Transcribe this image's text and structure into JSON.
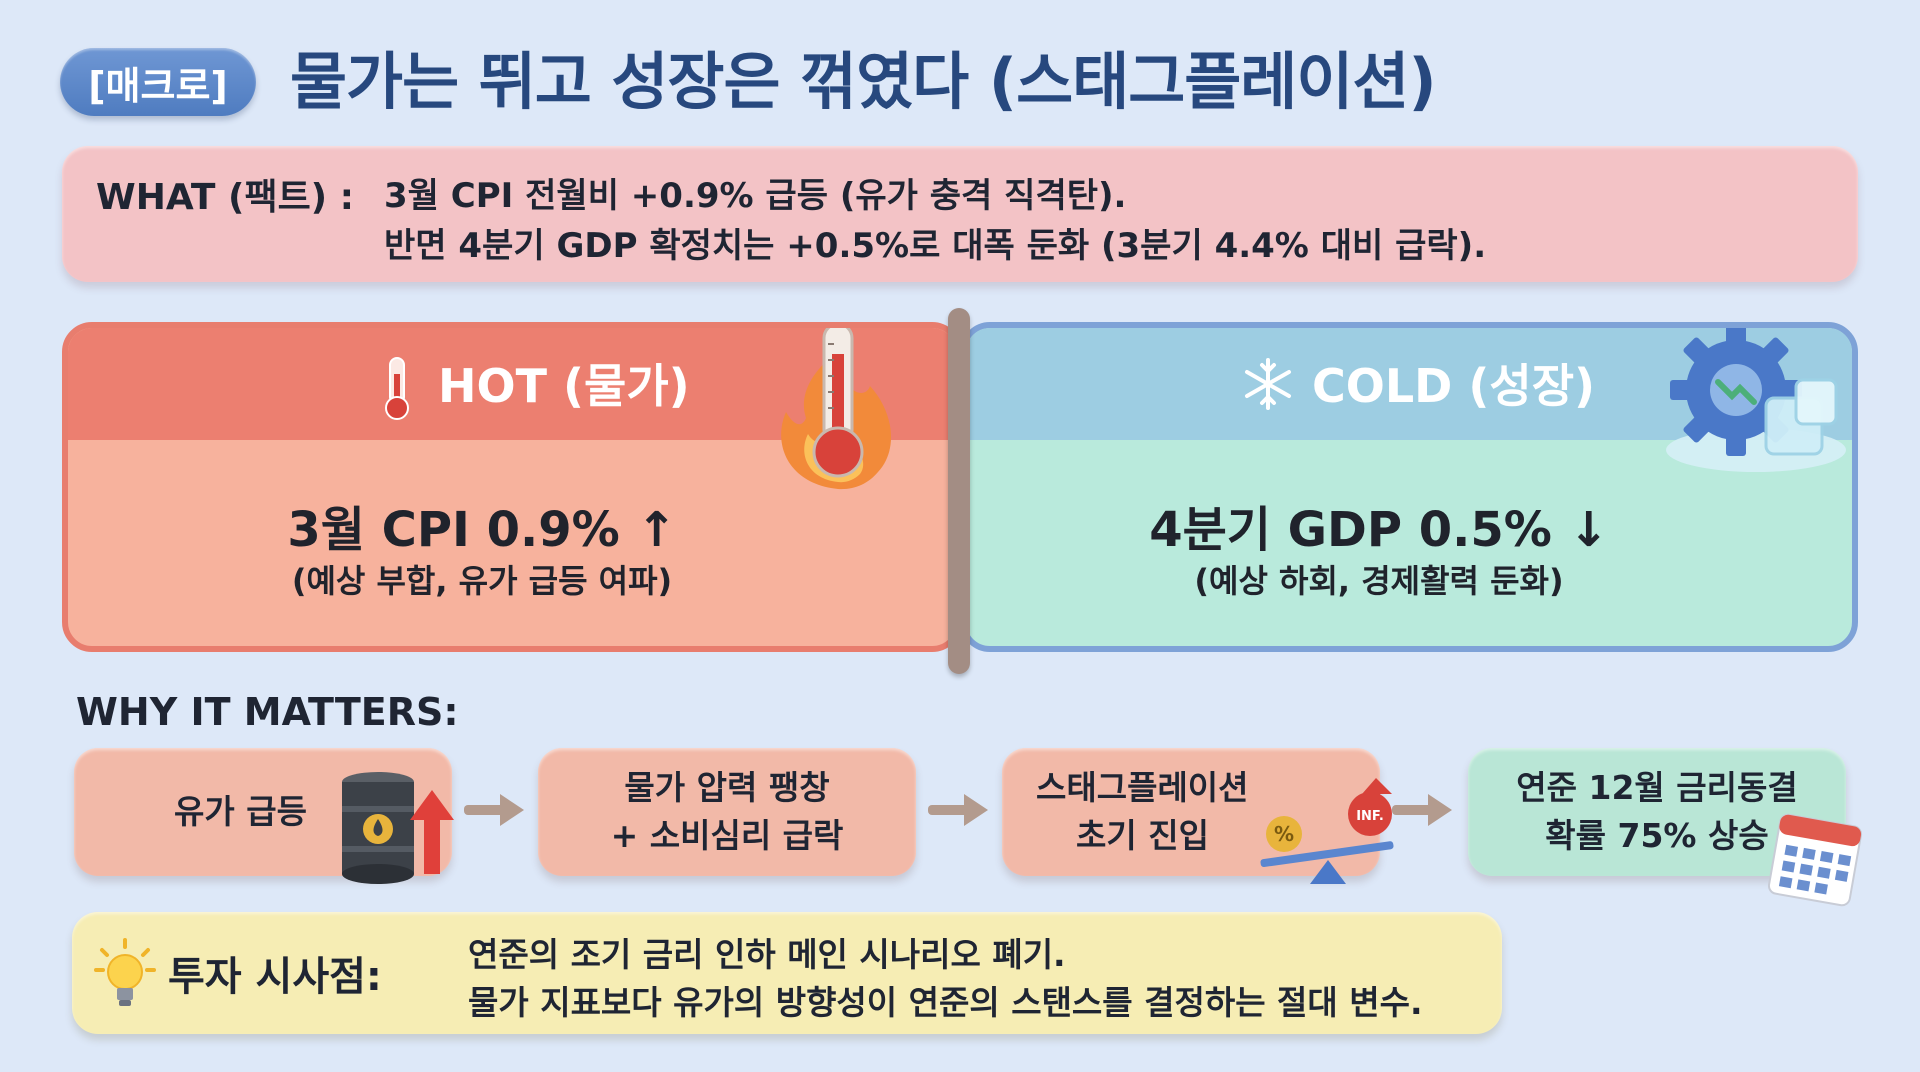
{
  "header": {
    "tag": "[매크로]",
    "title": "물가는 뛰고 성장은 꺾였다 (스태그플레이션)"
  },
  "what": {
    "label": "WHAT (팩트) :",
    "line1": "3월 CPI 전월비 +0.9% 급등 (유가 충격 직격탄).",
    "line2": "반면 4분기 GDP 확정치는 +0.5%로 대폭 둔화 (3분기 4.4% 대비 급락)."
  },
  "hot": {
    "title": "HOT (물가)",
    "main": "3월 CPI 0.9%",
    "main_arrow": "↑",
    "sub": "(예상 부합, 유가 급등 여파)",
    "icon": "thermometer-icon",
    "color": "#ec7f70"
  },
  "cold": {
    "title": "COLD (성장)",
    "main": "4분기 GDP 0.5%",
    "main_arrow": "↓",
    "sub": "(예상 하회, 경제활력 둔화)",
    "icon": "snowflake-icon",
    "color": "#9dcde2"
  },
  "why": {
    "label": "WHY IT MATTERS:",
    "steps": [
      {
        "line1": "유가 급등",
        "line2": "",
        "icon": "oil-barrel-icon"
      },
      {
        "line1": "물가 압력 팽창",
        "line2": "+ 소비심리 급락",
        "icon": ""
      },
      {
        "line1": "스태그플레이션",
        "line2": "초기 진입",
        "icon": "seesaw-icon",
        "badge1": "%",
        "badge2": "INF."
      },
      {
        "line1": "연준 12월 금리동결",
        "line2": "확률 75% 상승",
        "icon": "calendar-icon"
      }
    ]
  },
  "implication": {
    "label": "투자 시사점:",
    "line1": "연준의 조기 금리 인하 메인 시나리오 폐기.",
    "line2": "물가 지표보다 유가의 방향성이 연준의 스탠스를 결정하는 절대 변수."
  }
}
